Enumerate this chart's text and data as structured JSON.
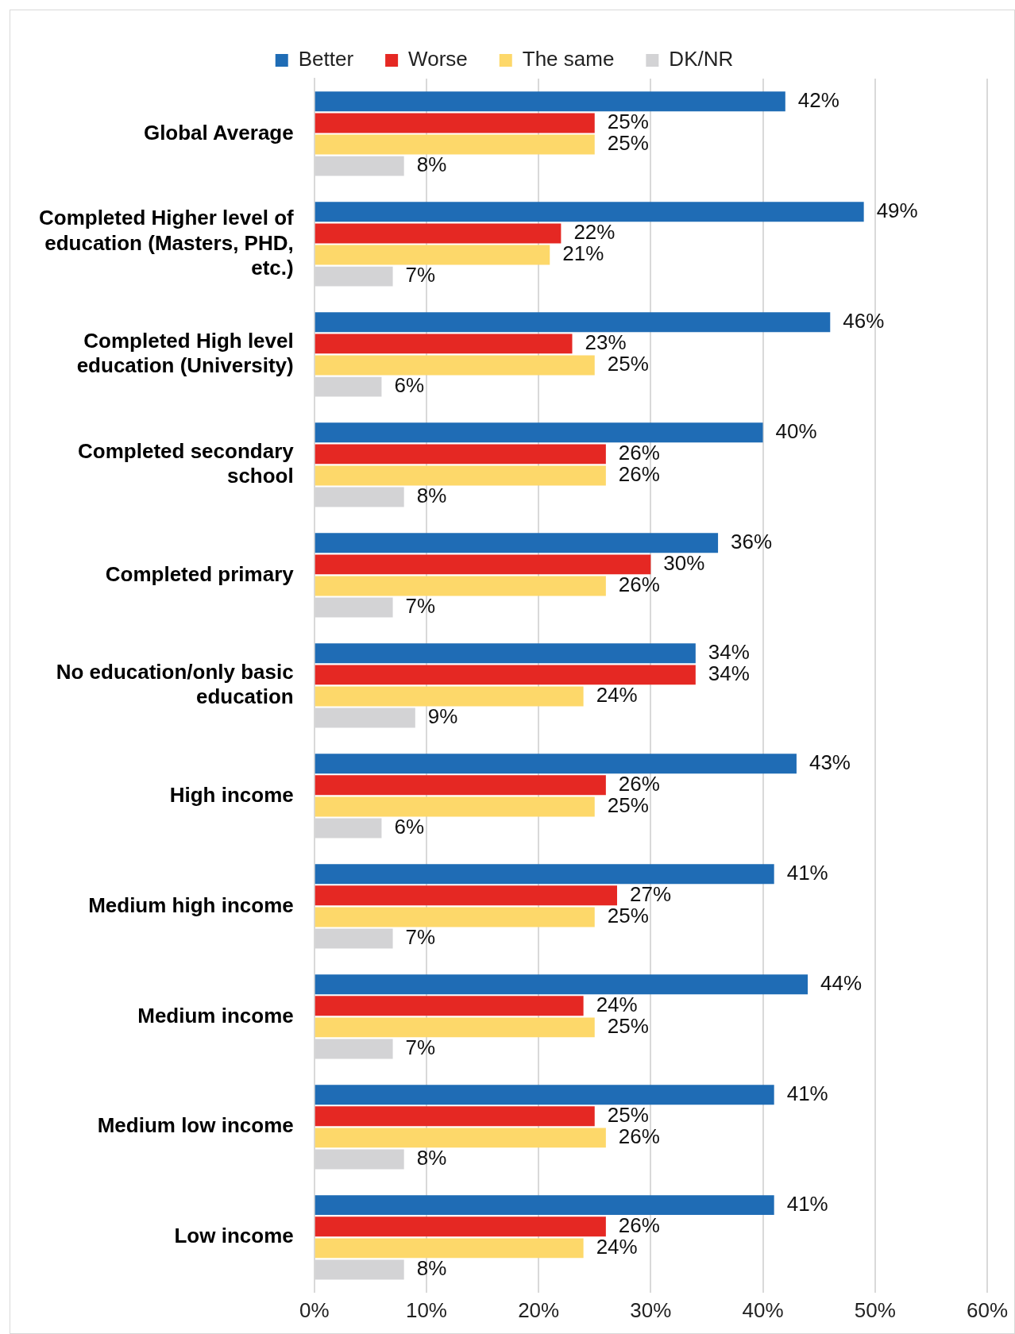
{
  "chart_data": {
    "type": "bar",
    "orientation": "horizontal",
    "categories": [
      "Global Average",
      "Completed Higher level of education (Masters, PHD, etc.)",
      "Completed High level education (University)",
      "Completed secondary school",
      "Completed primary",
      "No education/only basic education",
      "High income",
      "Medium high income",
      "Medium income",
      "Medium low income",
      "Low income"
    ],
    "series": [
      {
        "name": "Better",
        "color": "#1f6cb5",
        "values": [
          42,
          49,
          46,
          40,
          36,
          34,
          43,
          41,
          44,
          41,
          41
        ],
        "value_labels": [
          "42%",
          "49%",
          "46%",
          "40%",
          "36%",
          "34%",
          "43%",
          "41%",
          "44%",
          "41%",
          "41%"
        ]
      },
      {
        "name": "Worse",
        "color": "#e52823",
        "values": [
          25,
          22,
          23,
          26,
          30,
          34,
          26,
          27,
          24,
          25,
          26
        ],
        "value_labels": [
          "25%",
          "22%",
          "23%",
          "26%",
          "30%",
          "34%",
          "26%",
          "27%",
          "24%",
          "25%",
          "26%"
        ]
      },
      {
        "name": "The same",
        "color": "#fdd86a",
        "values": [
          25,
          21,
          25,
          26,
          26,
          24,
          25,
          25,
          25,
          26,
          24
        ],
        "value_labels": [
          "25%",
          "21%",
          "25%",
          "26%",
          "26%",
          "24%",
          "25%",
          "25%",
          "25%",
          "26%",
          "24%"
        ]
      },
      {
        "name": "DK/NR",
        "color": "#d3d3d5",
        "values": [
          8,
          7,
          6,
          8,
          7,
          9,
          6,
          7,
          7,
          8,
          8
        ],
        "value_labels": [
          "8%",
          "7%",
          "6%",
          "8%",
          "7%",
          "9%",
          "6%",
          "7%",
          "7%",
          "8%",
          "8%"
        ]
      }
    ],
    "xlim": [
      0,
      60
    ],
    "xticks": [
      {
        "value": 0,
        "label": "0%"
      },
      {
        "value": 10,
        "label": "10%"
      },
      {
        "value": 20,
        "label": "20%"
      },
      {
        "value": 30,
        "label": "30%"
      },
      {
        "value": 40,
        "label": "40%"
      },
      {
        "value": 50,
        "label": "50%"
      },
      {
        "value": 60,
        "label": "60%"
      }
    ],
    "grid": "x",
    "legend": "top"
  }
}
